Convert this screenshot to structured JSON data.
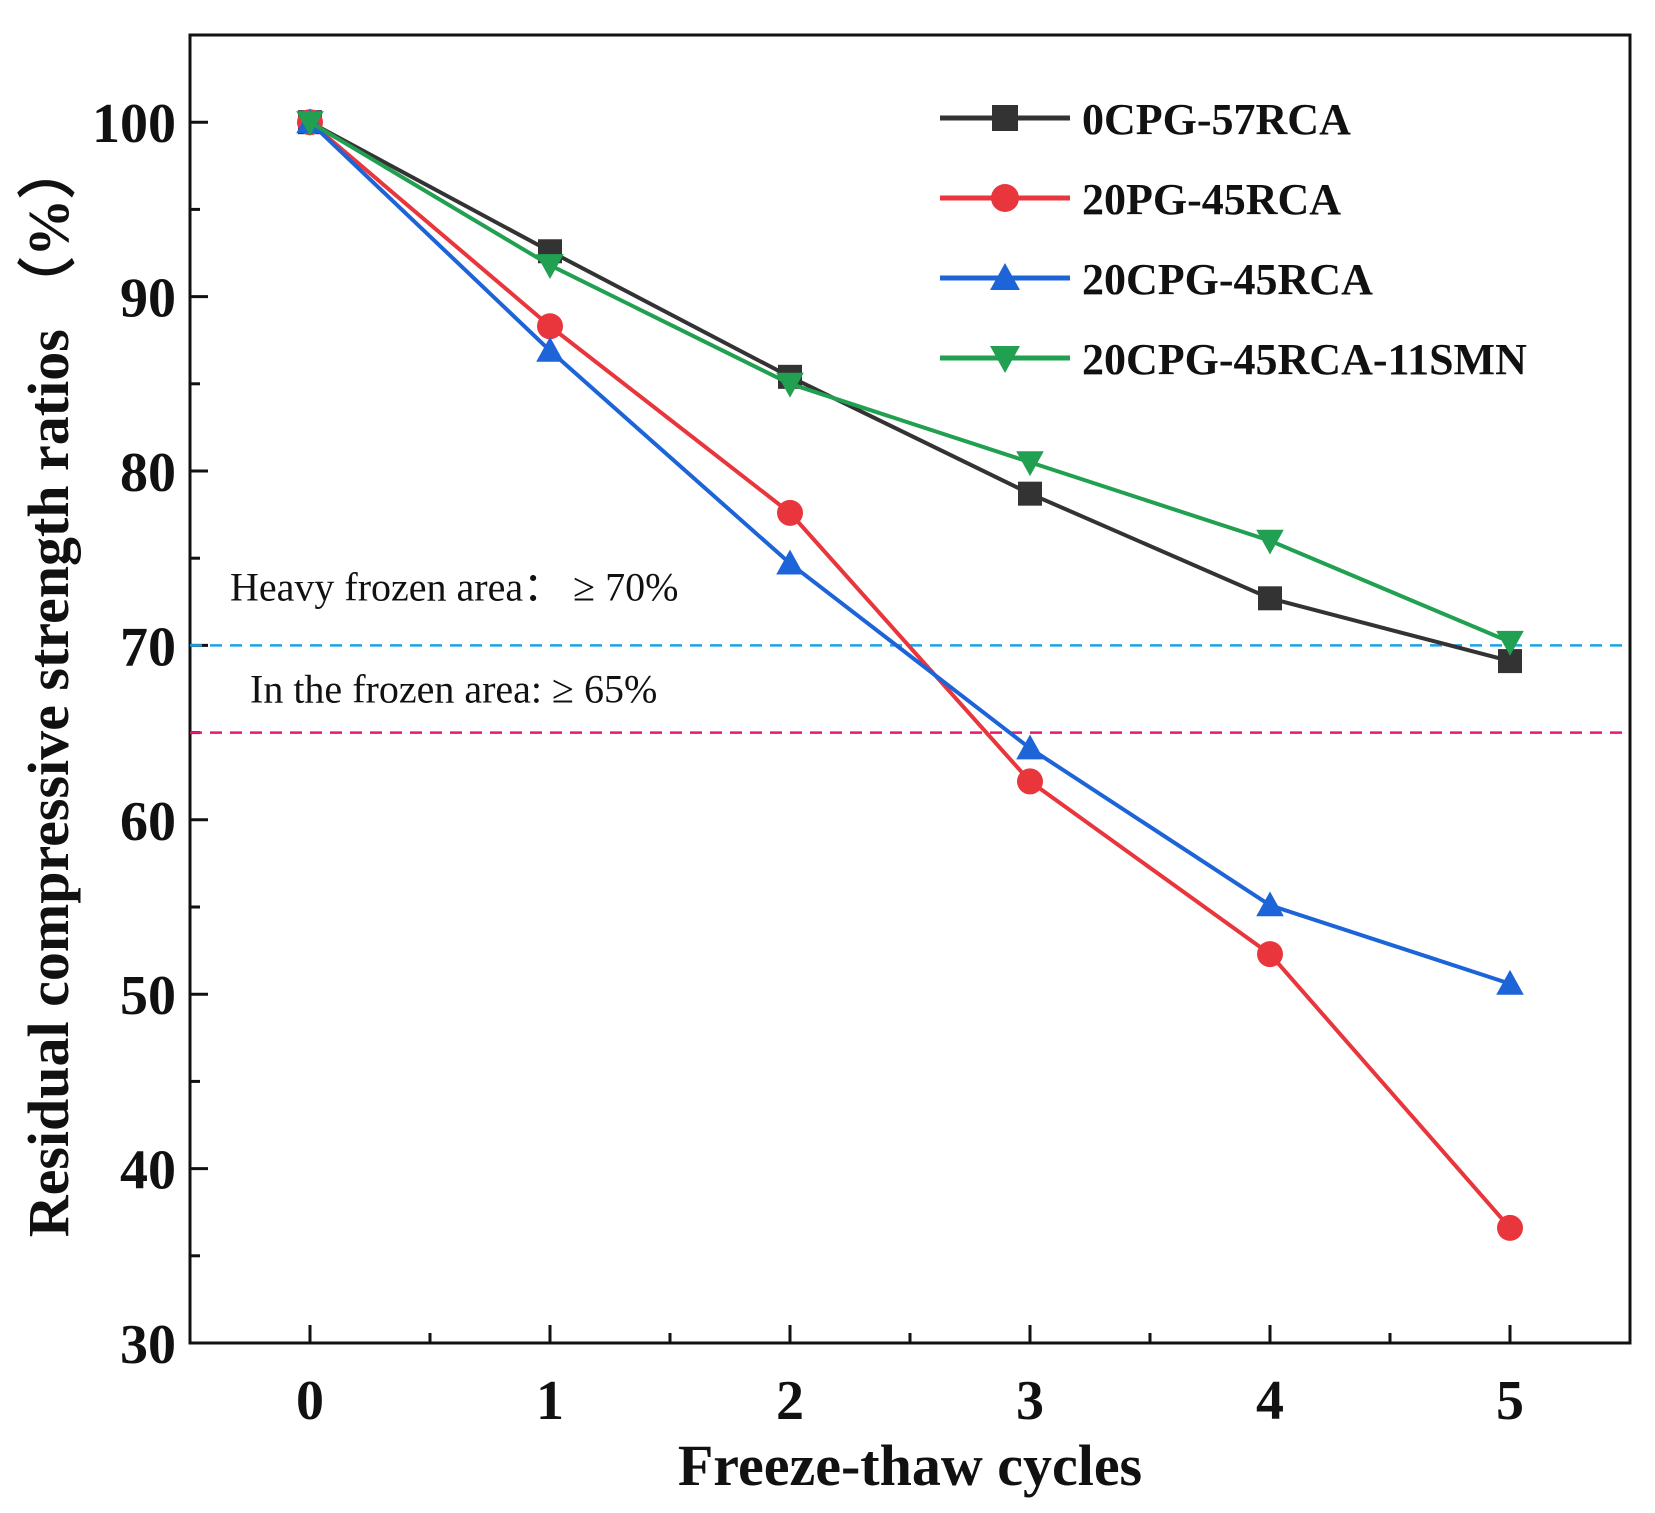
{
  "chart_data": {
    "type": "line",
    "xlabel": "Freeze-thaw cycles",
    "ylabel": "Residual compressive strength ratios （%）",
    "x": [
      0,
      1,
      2,
      3,
      4,
      5
    ],
    "xlim": [
      -0.5,
      5.5
    ],
    "ylim": [
      30,
      105
    ],
    "xticks": [
      0,
      1,
      2,
      3,
      4,
      5
    ],
    "yticks": [
      30,
      40,
      50,
      60,
      70,
      80,
      90,
      100
    ],
    "grid": false,
    "legend_position": "top-right",
    "series": [
      {
        "name": "0CPG-57RCA",
        "color": "#333333",
        "marker": "square",
        "values": [
          100,
          92.6,
          85.4,
          78.7,
          72.7,
          69.1
        ]
      },
      {
        "name": "20PG-45RCA",
        "color": "#e8363c",
        "marker": "circle",
        "values": [
          100,
          88.3,
          77.6,
          62.2,
          52.3,
          36.6
        ]
      },
      {
        "name": "20CPG-45RCA",
        "color": "#1c64d8",
        "marker": "triangle-up",
        "values": [
          100,
          86.9,
          74.7,
          64.1,
          55.1,
          50.6
        ]
      },
      {
        "name": "20CPG-45RCA-11SMN",
        "color": "#20a050",
        "marker": "triangle-down",
        "values": [
          100,
          91.8,
          85.0,
          80.5,
          76.0,
          70.2
        ]
      }
    ],
    "reference_lines": [
      {
        "y": 70,
        "color": "#1aa3e8",
        "label": "Heavy frozen area： ≥ 70%"
      },
      {
        "y": 65,
        "color": "#e8187a",
        "label": "In the frozen area:  ≥ 65%"
      }
    ]
  }
}
